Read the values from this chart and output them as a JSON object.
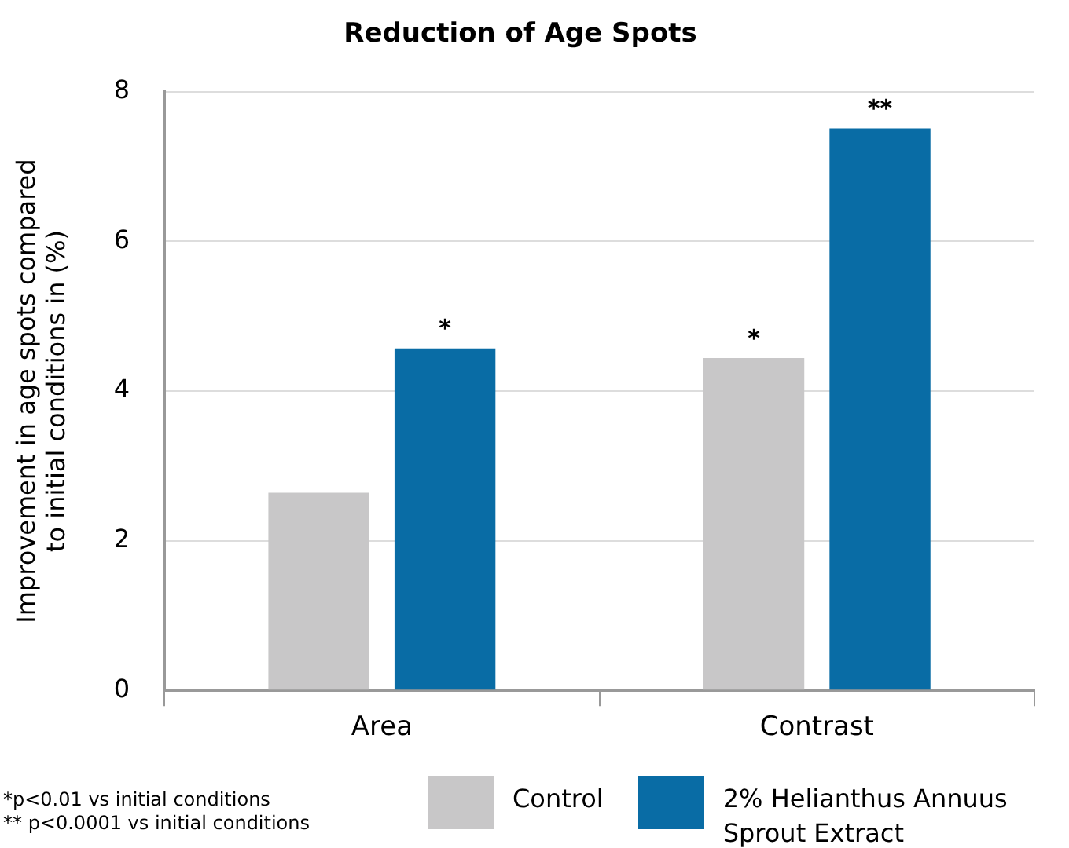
{
  "chart_data": {
    "type": "bar",
    "title": "Reduction of Age Spots",
    "ylabel": "Improvement in age spots compared to initial conditions in (%)",
    "categories": [
      "Area",
      "Contrast"
    ],
    "series": [
      {
        "name": "Control",
        "color": "#c8c7c8",
        "values": [
          2.64,
          4.44
        ],
        "value_labels": [
          null,
          "*"
        ]
      },
      {
        "name": "2% Helianthus Annuus Sprout Extract",
        "color": "#096ca5",
        "values": [
          4.57,
          7.51
        ],
        "value_labels": [
          "*",
          "**"
        ]
      }
    ],
    "ylim": [
      0,
      8
    ],
    "yticks": [
      0,
      2,
      4,
      6,
      8
    ],
    "grid": "y",
    "legend": "bottom",
    "annotations": [
      "*p<0.01 vs initial conditions",
      "** p<0.0001 vs initial conditions"
    ]
  }
}
